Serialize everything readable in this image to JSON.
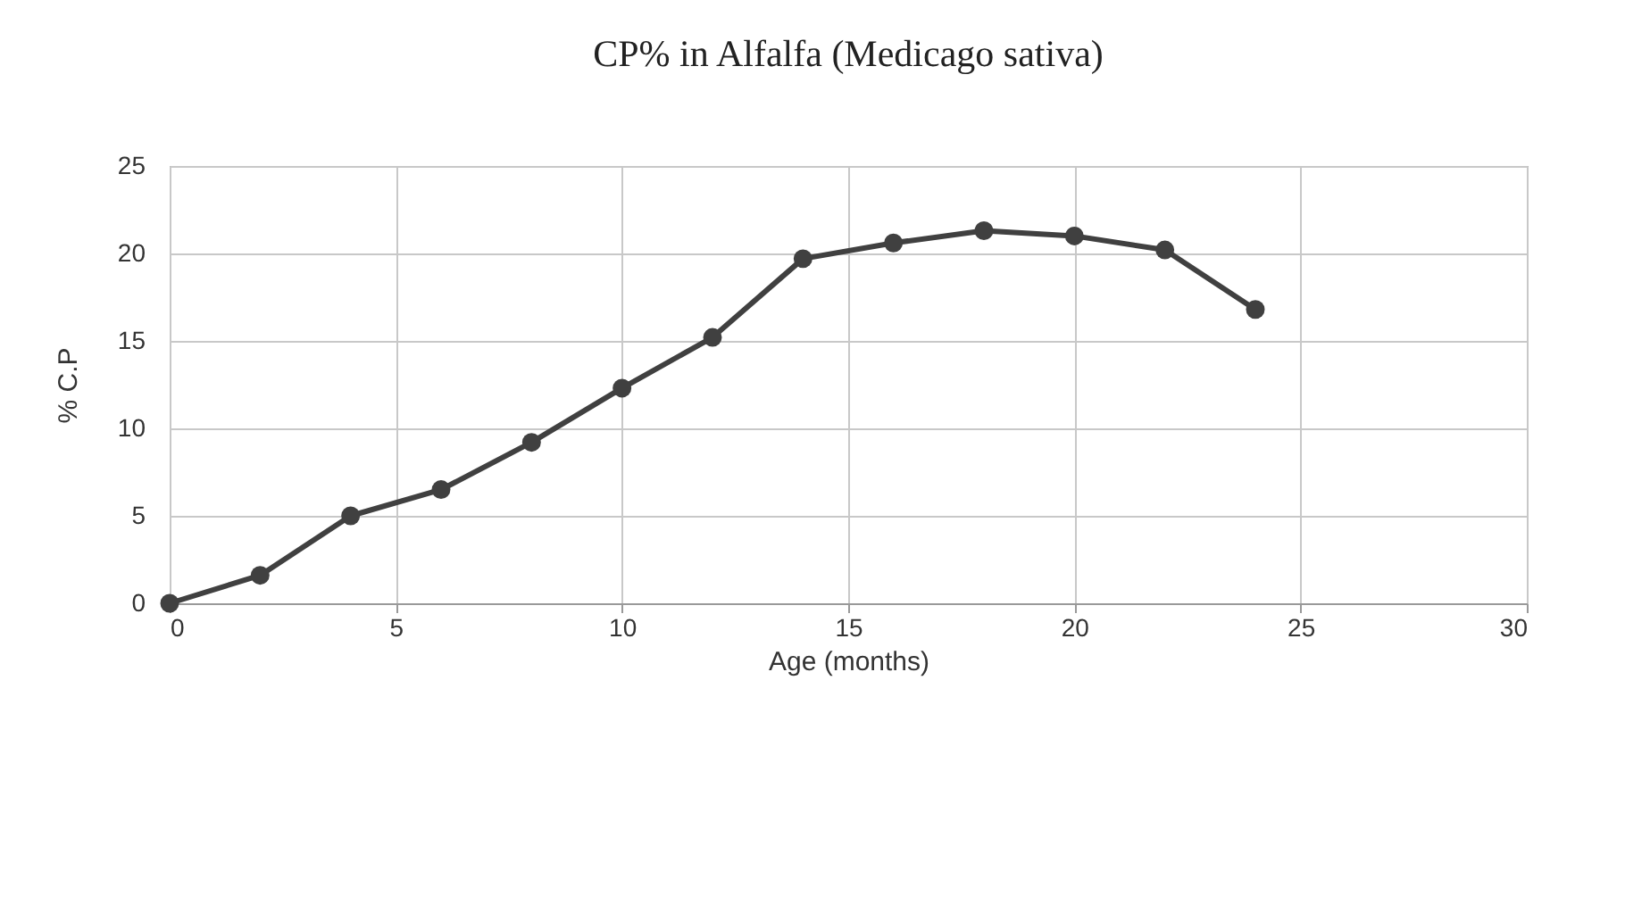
{
  "chart_data": {
    "type": "line",
    "title": "CP% in Alfalfa (Medicago sativa)",
    "xlabel": "Age (months)",
    "ylabel": "% C.P",
    "x": [
      0,
      2,
      4,
      6,
      8,
      10,
      12,
      14,
      16,
      18,
      20,
      22,
      24
    ],
    "series": [
      {
        "color": "#404040",
        "values": [
          0,
          1.6,
          5.0,
          6.5,
          9.2,
          12.3,
          15.2,
          19.7,
          20.6,
          21.3,
          21.0,
          20.2,
          16.8
        ]
      }
    ],
    "xlim": [
      0,
      30
    ],
    "xticks": [
      0,
      5,
      10,
      15,
      20,
      25,
      30
    ],
    "ylim": [
      0,
      25
    ],
    "yticks": [
      0,
      5,
      10,
      15,
      20,
      25
    ],
    "grid": true,
    "marker": "circle",
    "line_style": "solid"
  }
}
